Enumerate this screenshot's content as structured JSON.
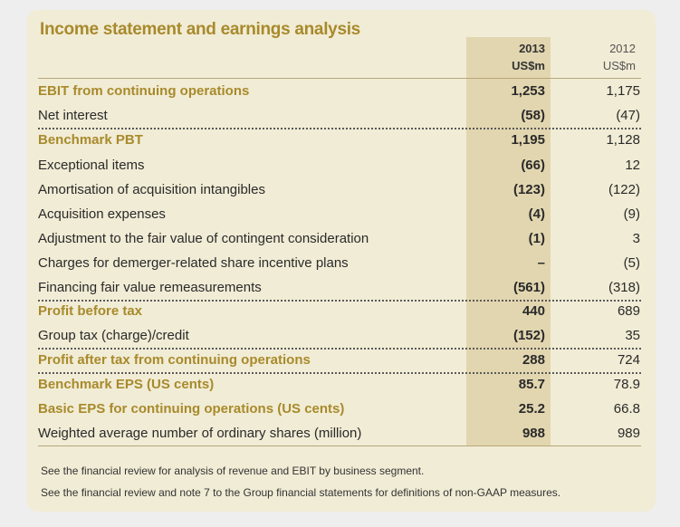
{
  "title": "Income statement and earnings analysis",
  "columns": {
    "y2013": {
      "year": "2013",
      "unit": "US$m"
    },
    "y2012": {
      "year": "2012",
      "unit": "US$m"
    }
  },
  "rows": [
    {
      "label": "EBIT from continuing operations",
      "v2013": "1,253",
      "v2012": "1,175"
    },
    {
      "label": "Net interest",
      "v2013": "(58)",
      "v2012": "(47)"
    },
    {
      "label": "Benchmark PBT",
      "v2013": "1,195",
      "v2012": "1,128"
    },
    {
      "label": "Exceptional items",
      "v2013": "(66)",
      "v2012": "12"
    },
    {
      "label": "Amortisation of acquisition intangibles",
      "v2013": "(123)",
      "v2012": "(122)"
    },
    {
      "label": "Acquisition expenses",
      "v2013": "(4)",
      "v2012": "(9)"
    },
    {
      "label": "Adjustment to the fair value of contingent consideration",
      "v2013": "(1)",
      "v2012": "3"
    },
    {
      "label": "Charges for demerger-related share incentive plans",
      "v2013": "–",
      "v2012": "(5)"
    },
    {
      "label": "Financing fair value remeasurements",
      "v2013": "(561)",
      "v2012": "(318)"
    },
    {
      "label": "Profit before tax",
      "v2013": "440",
      "v2012": "689"
    },
    {
      "label": "Group tax (charge)/credit",
      "v2013": "(152)",
      "v2012": "35"
    },
    {
      "label": "Profit after tax from continuing operations",
      "v2013": "288",
      "v2012": "724"
    },
    {
      "label": "Benchmark EPS (US cents)",
      "v2013": "85.7",
      "v2012": "78.9"
    },
    {
      "label": "Basic EPS for continuing operations (US cents)",
      "v2013": "25.2",
      "v2012": "66.8"
    },
    {
      "label": "Weighted average number of ordinary shares (million)",
      "v2013": "988",
      "v2012": "989"
    }
  ],
  "notes": [
    "See the financial review for analysis of revenue and EBIT by business segment.",
    "See the financial review and note 7 to the Group financial statements for definitions of non-GAAP measures."
  ],
  "colors": {
    "accent": "#a88a2c",
    "panel": "#f1ecd5",
    "highlight_column": "#e2d6b0"
  }
}
